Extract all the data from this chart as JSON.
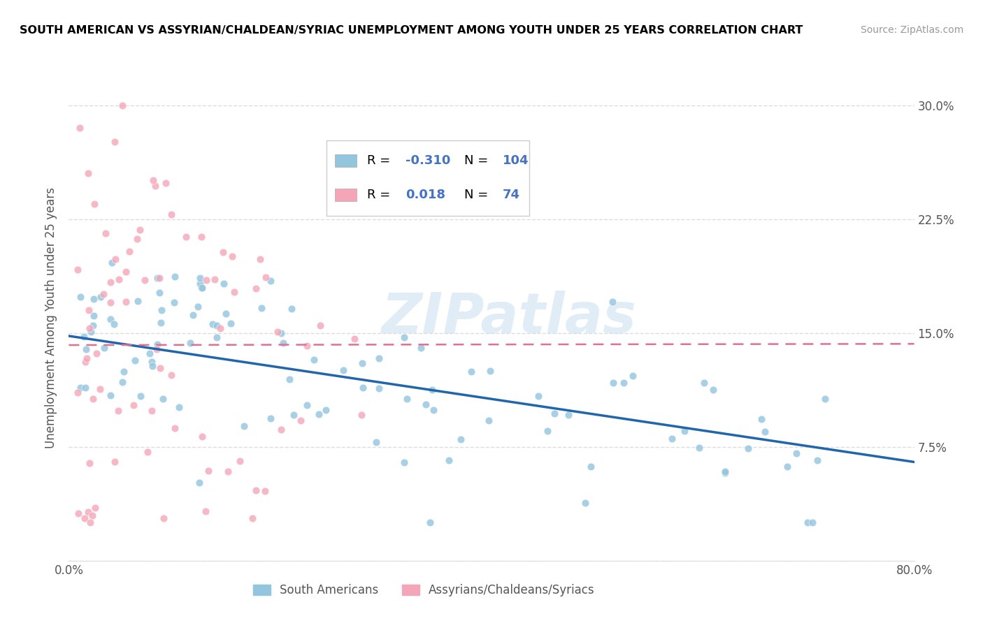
{
  "title": "SOUTH AMERICAN VS ASSYRIAN/CHALDEAN/SYRIAC UNEMPLOYMENT AMONG YOUTH UNDER 25 YEARS CORRELATION CHART",
  "source": "Source: ZipAtlas.com",
  "ylabel": "Unemployment Among Youth under 25 years",
  "xlim": [
    0.0,
    0.8
  ],
  "ylim": [
    0.0,
    0.32
  ],
  "xtick_vals": [
    0.0,
    0.1,
    0.2,
    0.3,
    0.4,
    0.5,
    0.6,
    0.7,
    0.8
  ],
  "xticklabels": [
    "0.0%",
    "",
    "",
    "",
    "",
    "",
    "",
    "",
    "80.0%"
  ],
  "ytick_vals": [
    0.0,
    0.075,
    0.15,
    0.225,
    0.3
  ],
  "yticklabels_right": [
    "",
    "7.5%",
    "15.0%",
    "22.5%",
    "30.0%"
  ],
  "watermark": "ZIPatlas",
  "blue_color": "#92c5de",
  "pink_color": "#f4a6b8",
  "blue_line_color": "#2166ac",
  "pink_line_color": "#e07090",
  "legend_blue_label": "South Americans",
  "legend_pink_label": "Assyrians/Chaldeans/Syriacs",
  "r_blue": "-0.310",
  "n_blue": "104",
  "r_pink": "0.018",
  "n_pink": "74",
  "stat_color": "#4472c4",
  "grid_color": "#dddddd",
  "tick_label_color": "#555555",
  "blue_line_start_y": 0.148,
  "blue_line_end_y": 0.065,
  "pink_line_y": 0.142
}
